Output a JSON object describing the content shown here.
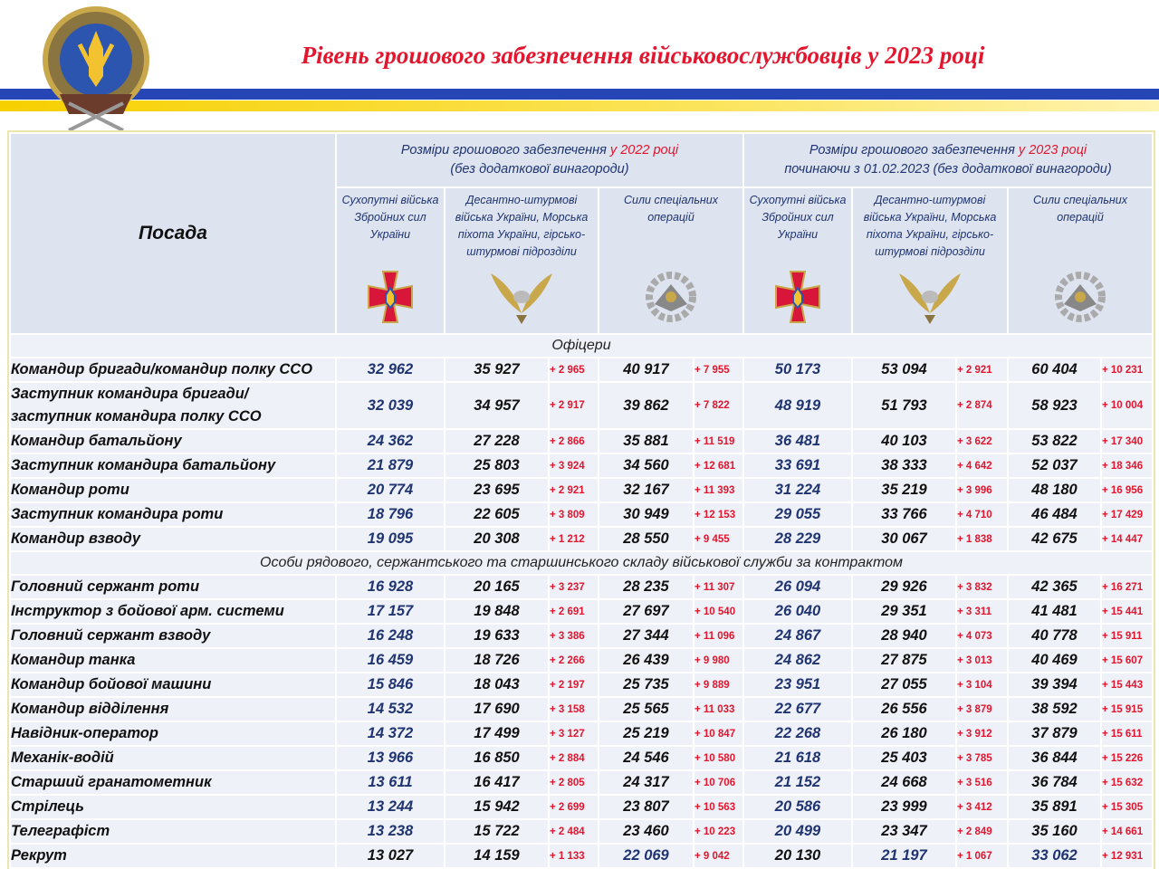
{
  "header": {
    "title": "Рівень грошового забезпечення військовослужбовців у 2023 році"
  },
  "table": {
    "position_header": "Посада",
    "groups": [
      {
        "line1": "Розміри грошового забезпечення",
        "year": "у 2022 році",
        "line2": "(без додаткової винагороди)"
      },
      {
        "line1": "Розміри грошового забезпечення",
        "year": "у 2023 році",
        "line2": "починаючи з 01.02.2023 (без додаткової винагороди)"
      }
    ],
    "columns": [
      [
        "Сухопутні війська Збройних сил України",
        "Десантно-штурмові війська України, Морська піхота України, гірсько-штурмові підрозділи",
        "Сили спеціальних операцій"
      ],
      [
        "Сухопутні війська Збройних сил України",
        "Десантно-штурмові війська України, Морська піхота України, гірсько-штурмові підрозділи",
        "Сили спеціальних операцій"
      ]
    ],
    "sections": [
      {
        "title": "Офіцери",
        "rows": [
          {
            "name": "Командир бригади/командир полку ССО",
            "cells": [
              "32 962",
              "35 927",
              "+ 2 965",
              "40 917",
              "+ 7 955",
              "50 173",
              "53 094",
              "+ 2 921",
              "60 404",
              "+ 10 231"
            ]
          },
          {
            "name": "Заступник командира бригади/\nзаступник командира полку ССО",
            "cells": [
              "32 039",
              "34 957",
              "+ 2 917",
              "39 862",
              "+ 7 822",
              "48 919",
              "51 793",
              "+ 2 874",
              "58 923",
              "+ 10 004"
            ]
          },
          {
            "name": "Командир батальйону",
            "cells": [
              "24 362",
              "27 228",
              "+ 2 866",
              "35 881",
              "+ 11 519",
              "36 481",
              "40 103",
              "+ 3 622",
              "53 822",
              "+ 17 340"
            ]
          },
          {
            "name": "Заступник командира батальйону",
            "cells": [
              "21 879",
              "25 803",
              "+ 3 924",
              "34 560",
              "+ 12 681",
              "33 691",
              "38 333",
              "+ 4 642",
              "52 037",
              "+ 18 346"
            ]
          },
          {
            "name": "Командир роти",
            "cells": [
              "20 774",
              "23 695",
              "+ 2 921",
              "32 167",
              "+ 11 393",
              "31 224",
              "35 219",
              "+ 3 996",
              "48 180",
              "+ 16 956"
            ]
          },
          {
            "name": "Заступник командира роти",
            "cells": [
              "18 796",
              "22 605",
              "+ 3 809",
              "30 949",
              "+ 12 153",
              "29 055",
              "33 766",
              "+ 4 710",
              "46 484",
              "+ 17 429"
            ]
          },
          {
            "name": "Командир взводу",
            "cells": [
              "19 095",
              "20 308",
              "+ 1 212",
              "28 550",
              "+ 9 455",
              "28 229",
              "30 067",
              "+ 1 838",
              "42 675",
              "+ 14 447"
            ]
          }
        ]
      },
      {
        "title": "Особи рядового, сержантського та старшинського складу військової служби за контрактом",
        "rows": [
          {
            "name": "Головний сержант роти",
            "cells": [
              "16 928",
              "20 165",
              "+ 3 237",
              "28 235",
              "+ 11 307",
              "26 094",
              "29 926",
              "+ 3 832",
              "42 365",
              "+ 16 271"
            ]
          },
          {
            "name": "Інструктор з бойової арм. системи",
            "cells": [
              "17 157",
              "19 848",
              "+ 2 691",
              "27 697",
              "+ 10 540",
              "26 040",
              "29 351",
              "+ 3 311",
              "41 481",
              "+ 15 441"
            ]
          },
          {
            "name": "Головний сержант взводу",
            "cells": [
              "16 248",
              "19 633",
              "+ 3 386",
              "27 344",
              "+ 11 096",
              "24 867",
              "28 940",
              "+ 4 073",
              "40 778",
              "+ 15 911"
            ]
          },
          {
            "name": "Командир танка",
            "cells": [
              "16 459",
              "18 726",
              "+ 2 266",
              "26 439",
              "+ 9 980",
              "24 862",
              "27 875",
              "+ 3 013",
              "40 469",
              "+ 15 607"
            ]
          },
          {
            "name": "Командир бойової машини",
            "cells": [
              "15 846",
              "18 043",
              "+ 2 197",
              "25 735",
              "+ 9 889",
              "23 951",
              "27 055",
              "+ 3 104",
              "39 394",
              "+ 15 443"
            ]
          },
          {
            "name": "Командир відділення",
            "cells": [
              "14 532",
              "17 690",
              "+ 3 158",
              "25 565",
              "+ 11 033",
              "22 677",
              "26 556",
              "+ 3 879",
              "38 592",
              "+ 15 915"
            ]
          },
          {
            "name": "Навідник-оператор",
            "cells": [
              "14 372",
              "17 499",
              "+ 3 127",
              "25 219",
              "+ 10 847",
              "22 268",
              "26 180",
              "+ 3 912",
              "37 879",
              "+ 15 611"
            ]
          },
          {
            "name": "Механік-водій",
            "cells": [
              "13 966",
              "16 850",
              "+ 2 884",
              "24 546",
              "+ 10 580",
              "21 618",
              "25 403",
              "+ 3 785",
              "36 844",
              "+ 15 226"
            ]
          },
          {
            "name": "Старший гранатометник",
            "cells": [
              "13 611",
              "16 417",
              "+ 2 805",
              "24 317",
              "+ 10 706",
              "21 152",
              "24 668",
              "+ 3 516",
              "36 784",
              "+ 15 632"
            ]
          },
          {
            "name": "Стрілець",
            "cells": [
              "13 244",
              "15 942",
              "+ 2 699",
              "23 807",
              "+ 10 563",
              "20 586",
              "23 999",
              "+ 3 412",
              "35 891",
              "+ 15 305"
            ]
          },
          {
            "name": "Телеграфіст",
            "cells": [
              "13 238",
              "15 722",
              "+ 2 484",
              "23 460",
              "+ 10 223",
              "20 499",
              "23 347",
              "+ 2 849",
              "35 160",
              "+ 14 661"
            ]
          },
          {
            "name": "Рекрут",
            "cells": [
              "13 027",
              "14 159",
              "+ 1 133",
              "22 069",
              "+ 9 042",
              "20 130",
              "21 197",
              "+ 1 067",
              "33 062",
              "+ 12 931"
            ]
          }
        ]
      }
    ]
  }
}
